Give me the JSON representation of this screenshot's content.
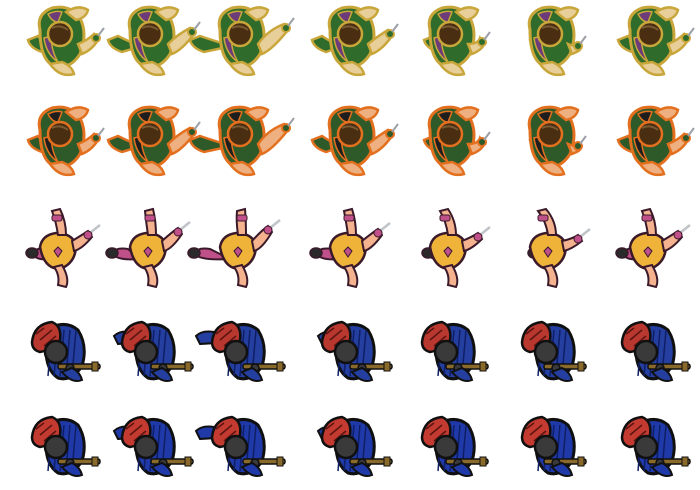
{
  "sheet": {
    "background": "#ffffff",
    "columns": 7,
    "rows": [
      {
        "name": "sprite-row-green-soldier-yellow-outline",
        "character": "soldier",
        "variant": "yellow-outline",
        "frames": 7,
        "colors": {
          "outline": "#c9a63a",
          "skin": "#e8cf9a",
          "body": "#2f6b2a",
          "accent": "#6b3b7a",
          "hair": "#4a2e12",
          "tool": "#9aa0a6"
        }
      },
      {
        "name": "sprite-row-green-soldier-orange-outline",
        "character": "soldier",
        "variant": "orange-outline",
        "frames": 7,
        "colors": {
          "outline": "#e3701f",
          "skin": "#eeb080",
          "body": "#2e5a2a",
          "accent": "#1e1e1e",
          "hair": "#4a2e12",
          "tool": "#9aa0a6"
        }
      },
      {
        "name": "sprite-row-pink-girl",
        "character": "girl",
        "variant": "pink",
        "frames": 7,
        "colors": {
          "outline": "#3a1a2a",
          "skin": "#f4b28e",
          "body": "#f0b33a",
          "accent": "#c0508a",
          "hair": "#2a2a2a",
          "tool": "#c0c4c8"
        }
      },
      {
        "name": "sprite-row-red-hair-rifleman",
        "character": "rifleman",
        "variant": "standard",
        "frames": 7,
        "colors": {
          "outline": "#101010",
          "skin": "#3a3a3a",
          "body": "#243fa0",
          "accent": "#b8382f",
          "hair": "#b8382f",
          "tool": "#8a6a2a"
        }
      },
      {
        "name": "sprite-row-red-hair-rifleman-alt",
        "character": "rifleman",
        "variant": "alt",
        "frames": 7,
        "colors": {
          "outline": "#101010",
          "skin": "#3a3a3a",
          "body": "#1f3aa8",
          "accent": "#c23a30",
          "hair": "#c23a30",
          "tool": "#8a6a2a"
        }
      }
    ]
  }
}
